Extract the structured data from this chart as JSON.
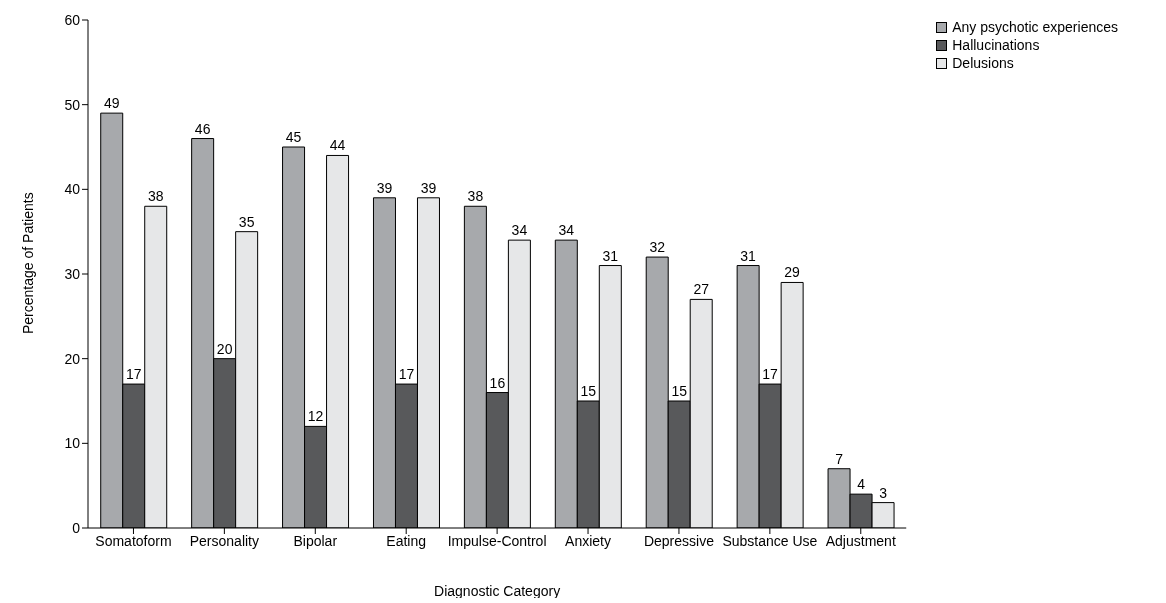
{
  "chart_data": {
    "type": "bar",
    "xlabel": "Diagnostic Category",
    "ylabel": "Percentage of Patients",
    "categories": [
      "Somatoform",
      "Personality",
      "Bipolar",
      "Eating",
      "Impulse-Control",
      "Anxiety",
      "Depressive",
      "Substance Use",
      "Adjustment"
    ],
    "series": [
      {
        "name": "Any psychotic experiences",
        "color": "#a7a9ac",
        "values": [
          49,
          46,
          45,
          39,
          38,
          34,
          32,
          31,
          7
        ]
      },
      {
        "name": "Hallucinations",
        "color": "#58595b",
        "values": [
          17,
          20,
          12,
          17,
          16,
          15,
          15,
          17,
          4
        ]
      },
      {
        "name": "Delusions",
        "color": "#e6e7e8",
        "values": [
          38,
          35,
          44,
          39,
          34,
          31,
          27,
          29,
          3
        ]
      }
    ],
    "ylim": [
      0,
      60
    ],
    "yticks": [
      0,
      10,
      20,
      30,
      40,
      50,
      60
    ],
    "legend": "top right",
    "data_labels": true
  }
}
